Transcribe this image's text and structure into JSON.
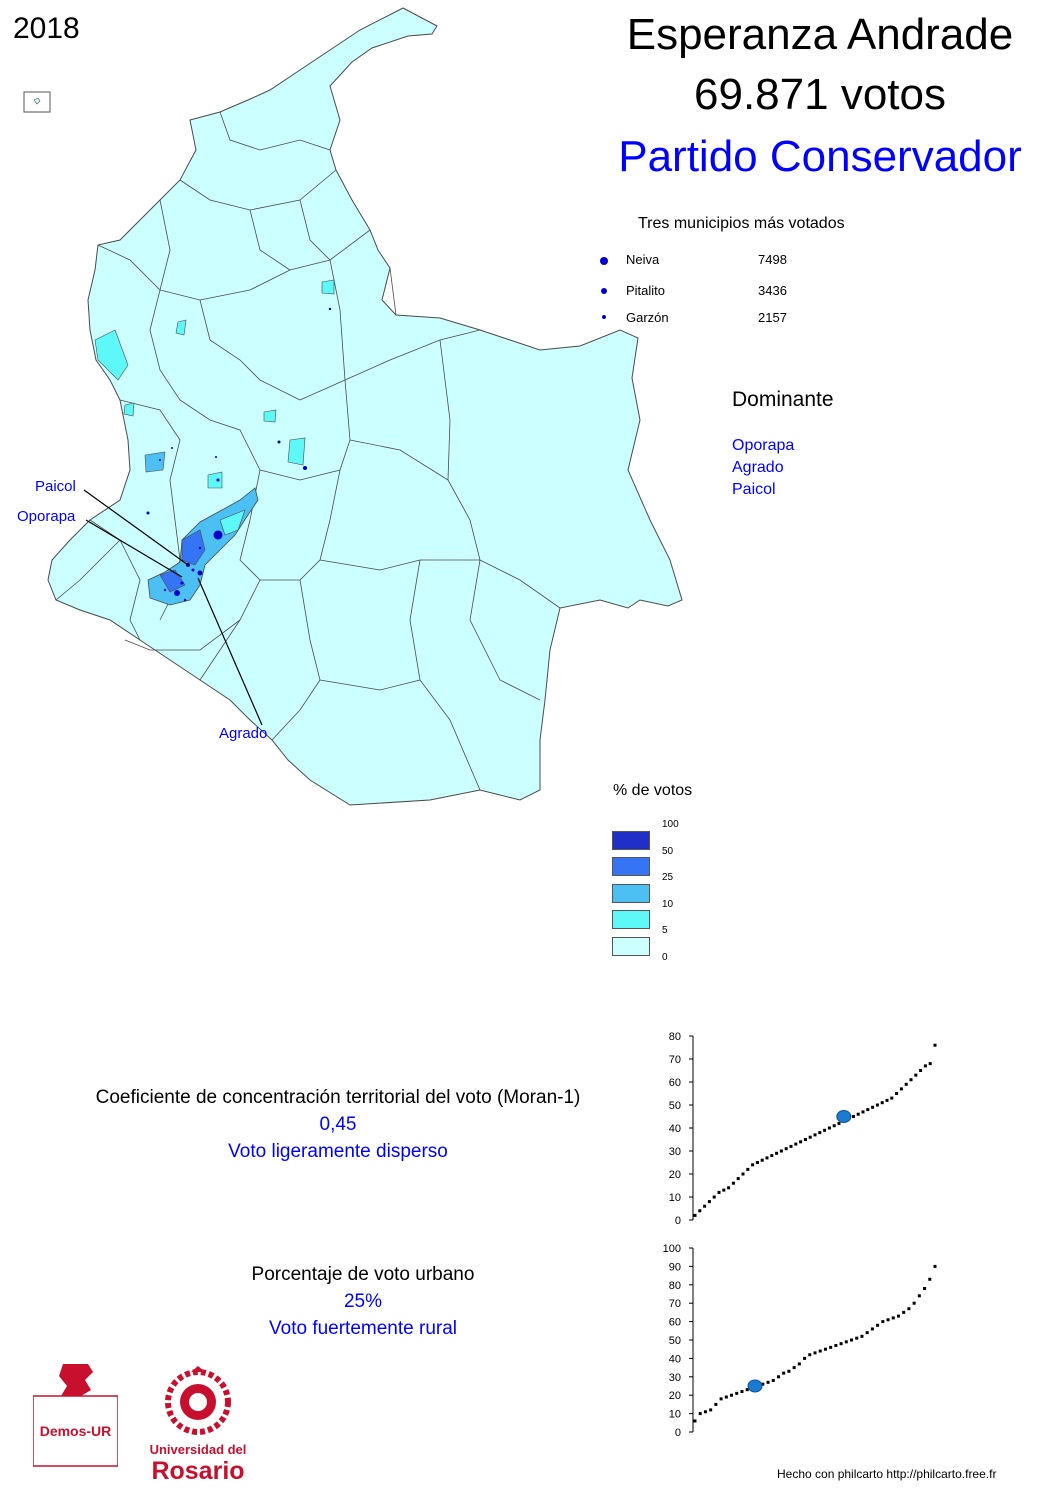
{
  "header": {
    "year": "2018",
    "candidate": "Esperanza Andrade",
    "votes": "69.871 votos",
    "party": "Partido Conservador"
  },
  "top_municipalities": {
    "title": "Tres municipios más votados",
    "items": [
      {
        "name": "Neiva",
        "value": "7498"
      },
      {
        "name": "Pitalito",
        "value": "3436"
      },
      {
        "name": "Garzón",
        "value": "2157"
      }
    ]
  },
  "dominant": {
    "title": "Dominante",
    "items": [
      "Oporapa",
      "Agrado",
      "Paicol"
    ]
  },
  "map_labels": {
    "paicol": "Paicol",
    "oporapa": "Oporapa",
    "agrado": "Agrado"
  },
  "legend": {
    "title": "% de votos",
    "breaks": [
      "100",
      "50",
      "25",
      "10",
      "5",
      "0"
    ],
    "colors": [
      "#1f2fc8",
      "#3575f5",
      "#4cc0f2",
      "#5ef8f8",
      "#ccffff"
    ]
  },
  "colors": {
    "accent_blue": "#0000ff",
    "map_base": "#ccffff",
    "map_border": "#4a4a4a"
  },
  "moran": {
    "label": "Coeficiente de concentración territorial del voto (Moran-1)",
    "value": "0,45",
    "description": "Voto ligeramente disperso"
  },
  "urban": {
    "label": "Porcentaje de voto urbano",
    "value": "25%",
    "description": "Voto fuertemente rural"
  },
  "chart_data": [
    {
      "type": "scatter",
      "ylim": [
        0,
        80
      ],
      "yticks": [
        "0",
        "10",
        "20",
        "30",
        "40",
        "50",
        "60",
        "70",
        "80"
      ],
      "highlight": {
        "x_fraction": 0.62,
        "y": 45
      },
      "y": [
        2,
        4,
        6,
        8,
        10,
        12,
        13,
        14,
        16,
        18,
        20,
        22,
        24,
        25,
        26,
        27,
        28,
        29,
        30,
        31,
        32,
        33,
        34,
        35,
        36,
        37,
        38,
        39,
        40,
        41,
        42,
        43,
        44,
        45,
        46,
        47,
        48,
        49,
        50,
        51,
        52,
        53,
        55,
        57,
        59,
        61,
        63,
        65,
        67,
        68,
        76
      ]
    },
    {
      "type": "scatter",
      "ylim": [
        0,
        100
      ],
      "yticks": [
        "0",
        "10",
        "20",
        "30",
        "40",
        "50",
        "60",
        "70",
        "80",
        "90",
        "100"
      ],
      "highlight": {
        "x_fraction": 0.25,
        "y": 25
      },
      "y": [
        6,
        10,
        11,
        12,
        15,
        18,
        19,
        20,
        21,
        22,
        23,
        24,
        25,
        26,
        27,
        28,
        30,
        32,
        33,
        35,
        37,
        40,
        42,
        43,
        44,
        45,
        46,
        47,
        48,
        49,
        50,
        51,
        52,
        54,
        56,
        58,
        60,
        61,
        62,
        63,
        65,
        67,
        70,
        74,
        78,
        83,
        90
      ]
    }
  ],
  "logos": {
    "demos": "Demos-UR",
    "ur_line1": "Universidad del",
    "ur_line2": "Rosario"
  },
  "footer": {
    "credit": "Hecho con philcarto http://philcarto.free.fr"
  }
}
